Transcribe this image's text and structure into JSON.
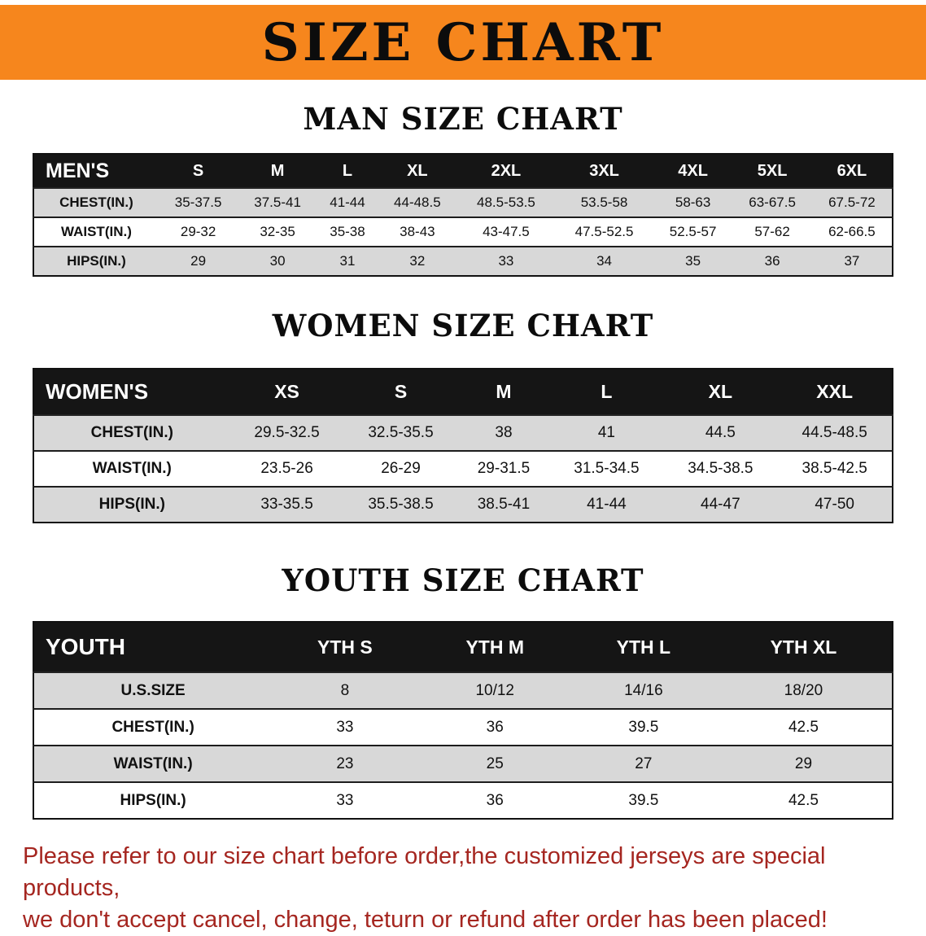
{
  "banner": {
    "title": "SIZE CHART"
  },
  "sections": [
    {
      "heading": "MAN SIZE CHART",
      "table": {
        "header": [
          "MEN'S",
          "S",
          "M",
          "L",
          "XL",
          "2XL",
          "3XL",
          "4XL",
          "5XL",
          "6XL"
        ],
        "rows": [
          [
            "CHEST(IN.)",
            "35-37.5",
            "37.5-41",
            "41-44",
            "44-48.5",
            "48.5-53.5",
            "53.5-58",
            "58-63",
            "63-67.5",
            "67.5-72"
          ],
          [
            "WAIST(IN.)",
            "29-32",
            "32-35",
            "35-38",
            "38-43",
            "43-47.5",
            "47.5-52.5",
            "52.5-57",
            "57-62",
            "62-66.5"
          ],
          [
            "HIPS(IN.)",
            "29",
            "30",
            "31",
            "32",
            "33",
            "34",
            "35",
            "36",
            "37"
          ]
        ]
      }
    },
    {
      "heading": "WOMEN SIZE CHART",
      "table": {
        "header": [
          "WOMEN'S",
          "XS",
          "S",
          "M",
          "L",
          "XL",
          "XXL"
        ],
        "rows": [
          [
            "CHEST(IN.)",
            "29.5-32.5",
            "32.5-35.5",
            "38",
            "41",
            "44.5",
            "44.5-48.5"
          ],
          [
            "WAIST(IN.)",
            "23.5-26",
            "26-29",
            "29-31.5",
            "31.5-34.5",
            "34.5-38.5",
            "38.5-42.5"
          ],
          [
            "HIPS(IN.)",
            "33-35.5",
            "35.5-38.5",
            "38.5-41",
            "41-44",
            "44-47",
            "47-50"
          ]
        ]
      }
    },
    {
      "heading": "YOUTH SIZE CHART",
      "table": {
        "header": [
          "YOUTH",
          "YTH S",
          "YTH M",
          "YTH L",
          "YTH XL"
        ],
        "rows": [
          [
            "U.S.SIZE",
            "8",
            "10/12",
            "14/16",
            "18/20"
          ],
          [
            "CHEST(IN.)",
            "33",
            "36",
            "39.5",
            "42.5"
          ],
          [
            "WAIST(IN.)",
            "23",
            "25",
            "27",
            "29"
          ],
          [
            "HIPS(IN.)",
            "33",
            "36",
            "39.5",
            "42.5"
          ]
        ]
      }
    }
  ],
  "footer": {
    "line1": "Please refer to our size chart before order,the customized jerseys are special products,",
    "line2": "we don't accept cancel, change, teturn or refund after order has been placed!"
  },
  "colors": {
    "banner_bg": "#F6861D",
    "header_bg": "#151515",
    "row_alt": "#D8D8D8",
    "footer_text": "#A52620"
  }
}
